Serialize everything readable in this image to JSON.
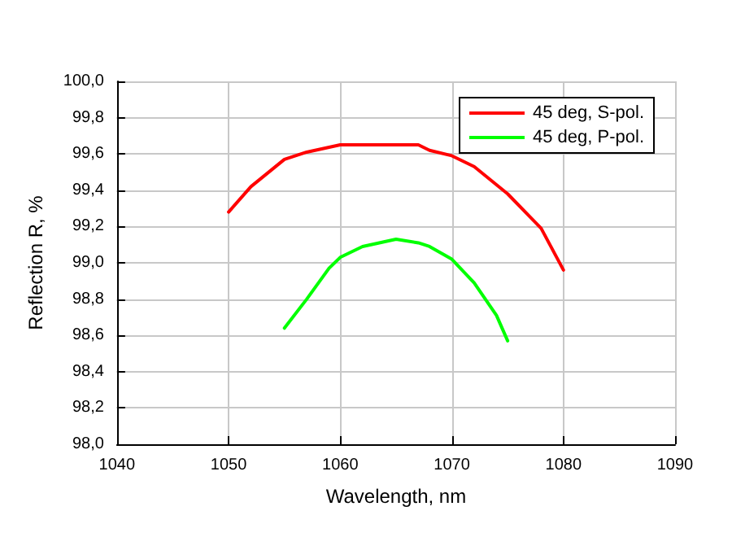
{
  "chart_data": {
    "type": "line",
    "xlabel": "Wavelength, nm",
    "ylabel": "Reflection R, %",
    "xlim": [
      1040,
      1090
    ],
    "xticks": [
      1040,
      1050,
      1060,
      1070,
      1080,
      1090
    ],
    "ylim": [
      98,
      100
    ],
    "yticks": [
      {
        "value": 98,
        "label": "98,0"
      },
      {
        "value": 98.2,
        "label": "98,2"
      },
      {
        "value": 98.4,
        "label": "98,4"
      },
      {
        "value": 98.6,
        "label": "98,6"
      },
      {
        "value": 98.8,
        "label": "98,8"
      },
      {
        "value": 99,
        "label": "99,0"
      },
      {
        "value": 99.2,
        "label": "99,2"
      },
      {
        "value": 99.4,
        "label": "99,4"
      },
      {
        "value": 99.6,
        "label": "99,6"
      },
      {
        "value": 99.8,
        "label": "99,8"
      },
      {
        "value": 100,
        "label": "100,0"
      }
    ],
    "grid": true,
    "legend": "top right",
    "marker": "none",
    "line_style": "solid",
    "series": [
      {
        "name": "45 deg, S-pol.",
        "color": "#ff0000",
        "x": [
          1050,
          1052,
          1055,
          1057,
          1060,
          1065,
          1067,
          1068,
          1070,
          1072,
          1075,
          1078,
          1080
        ],
        "values": [
          99.28,
          99.42,
          99.57,
          99.61,
          99.65,
          99.65,
          99.65,
          99.62,
          99.59,
          99.53,
          99.38,
          99.19,
          98.96
        ]
      },
      {
        "name": "45 deg, P-pol.",
        "color": "#00ff00",
        "x": [
          1055,
          1057,
          1059,
          1060,
          1062,
          1065,
          1067,
          1068,
          1070,
          1072,
          1074,
          1075
        ],
        "values": [
          98.64,
          98.8,
          98.97,
          99.03,
          99.09,
          99.13,
          99.11,
          99.09,
          99.02,
          98.89,
          98.71,
          98.57
        ]
      }
    ]
  }
}
